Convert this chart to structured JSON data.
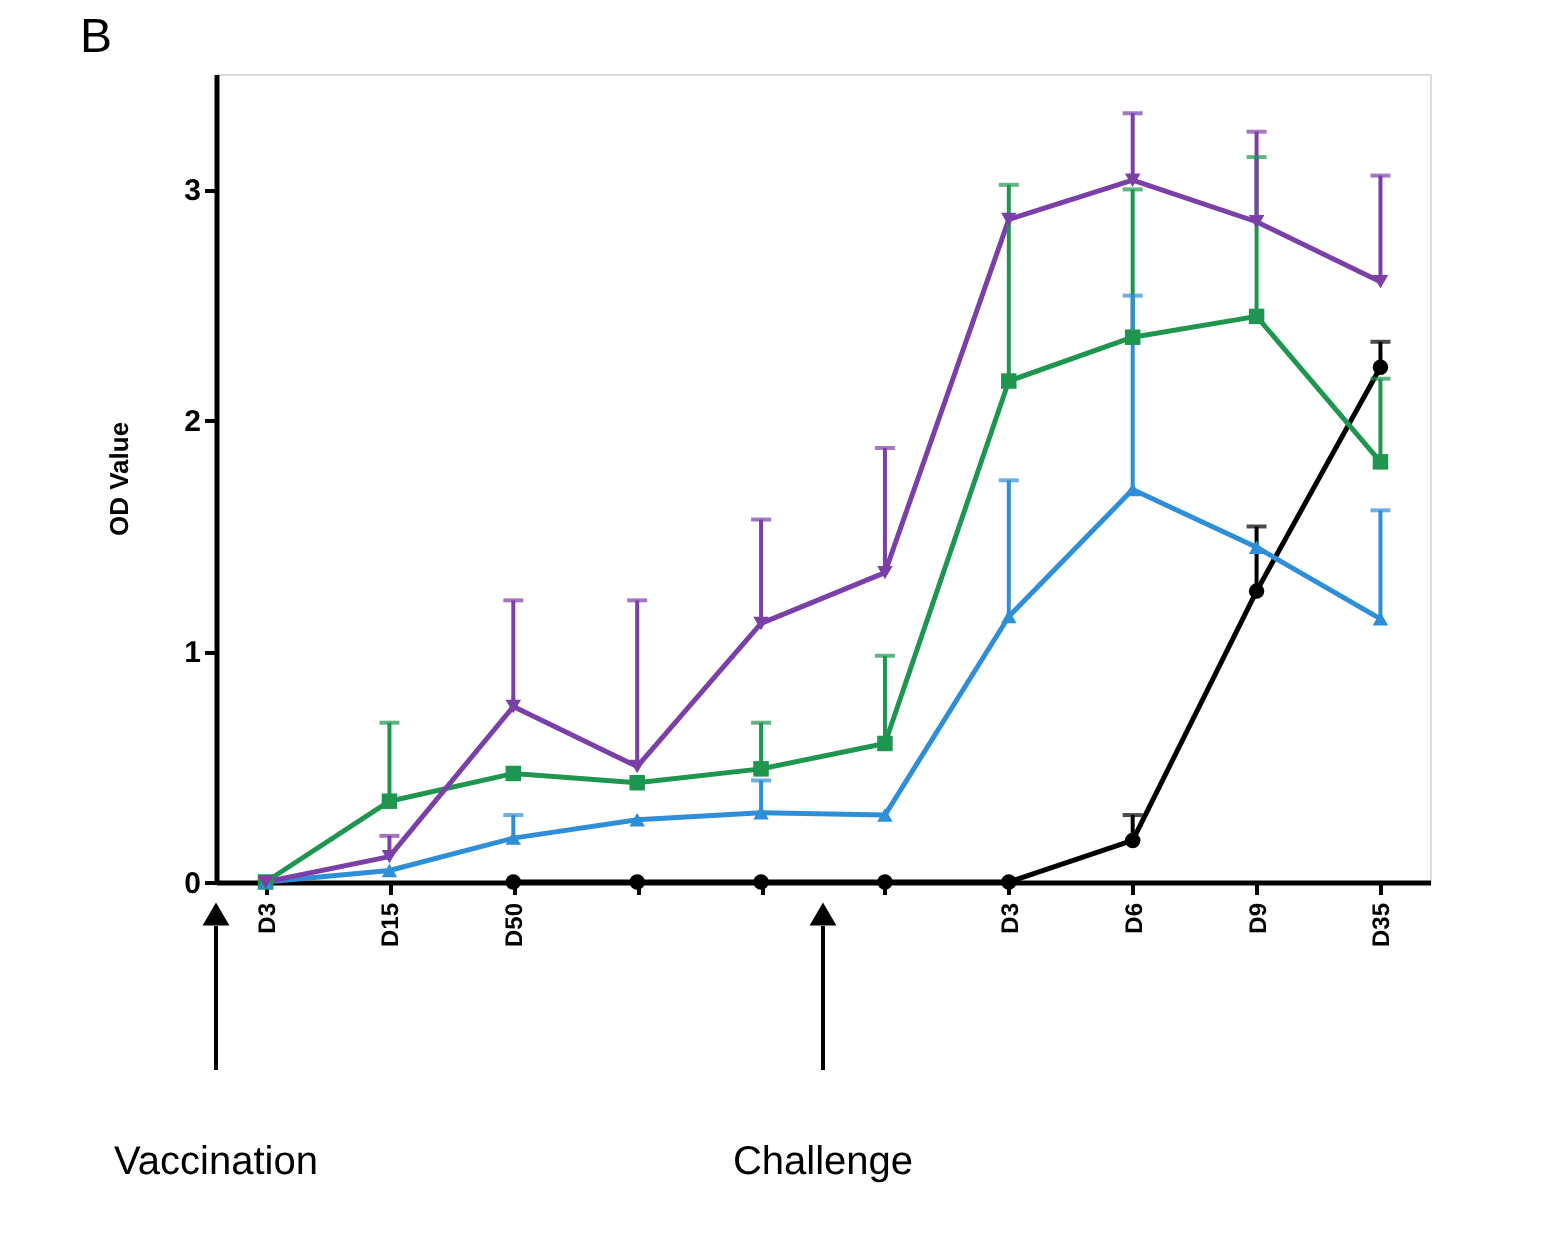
{
  "chart_data": {
    "type": "line",
    "title": "B",
    "ylabel": "OD Value",
    "categories": [
      "D3",
      "D15",
      "D50",
      null,
      null,
      null,
      "D3",
      "D6",
      "D9",
      "D35"
    ],
    "ylim": [
      0,
      3.5
    ],
    "yticks": [
      0,
      1,
      2,
      3
    ],
    "grid": false,
    "legend": false,
    "annotations": [
      "Vaccination",
      "Challenge"
    ],
    "series": [
      {
        "color": "#000000",
        "marker": "circle",
        "values": [
          null,
          null,
          0,
          0,
          0,
          0,
          0,
          0.18,
          1.26,
          2.23
        ],
        "errors": [
          null,
          null,
          null,
          null,
          null,
          null,
          null,
          [
            0.18,
            0.29
          ],
          [
            1.26,
            1.54
          ],
          [
            2.23,
            2.34
          ]
        ]
      },
      {
        "color": "#1e9650",
        "marker": "square",
        "values": [
          0,
          0.35,
          0.47,
          0.43,
          0.49,
          0.6,
          2.17,
          2.36,
          2.45,
          1.82
        ],
        "errors": [
          null,
          [
            0.35,
            0.69
          ],
          null,
          null,
          [
            0.49,
            0.69
          ],
          [
            0.6,
            0.98
          ],
          [
            2.17,
            3.02
          ],
          [
            2.36,
            3.0
          ],
          [
            2.45,
            3.14
          ],
          [
            1.82,
            2.18
          ]
        ]
      },
      {
        "color": "#2e8fd8",
        "marker": "triangle",
        "values": [
          0,
          0.05,
          0.19,
          0.27,
          0.3,
          0.29,
          1.15,
          1.7,
          1.45,
          1.14
        ],
        "errors": [
          null,
          null,
          [
            0.19,
            0.29
          ],
          null,
          [
            0.3,
            0.44
          ],
          null,
          [
            1.15,
            1.74
          ],
          [
            1.7,
            2.54
          ],
          null,
          [
            1.14,
            1.61
          ]
        ]
      },
      {
        "color": "#7b3fa8",
        "marker": "triangle-down",
        "values": [
          0,
          0.11,
          0.76,
          0.5,
          1.12,
          1.34,
          2.87,
          3.04,
          2.86,
          2.6
        ],
        "errors": [
          null,
          [
            0.11,
            0.2
          ],
          [
            0.76,
            1.22
          ],
          [
            0.5,
            1.22
          ],
          [
            1.12,
            1.57
          ],
          [
            1.34,
            1.88
          ],
          null,
          [
            3.04,
            3.33
          ],
          [
            2.86,
            3.25
          ],
          [
            2.6,
            3.06
          ]
        ]
      }
    ]
  }
}
